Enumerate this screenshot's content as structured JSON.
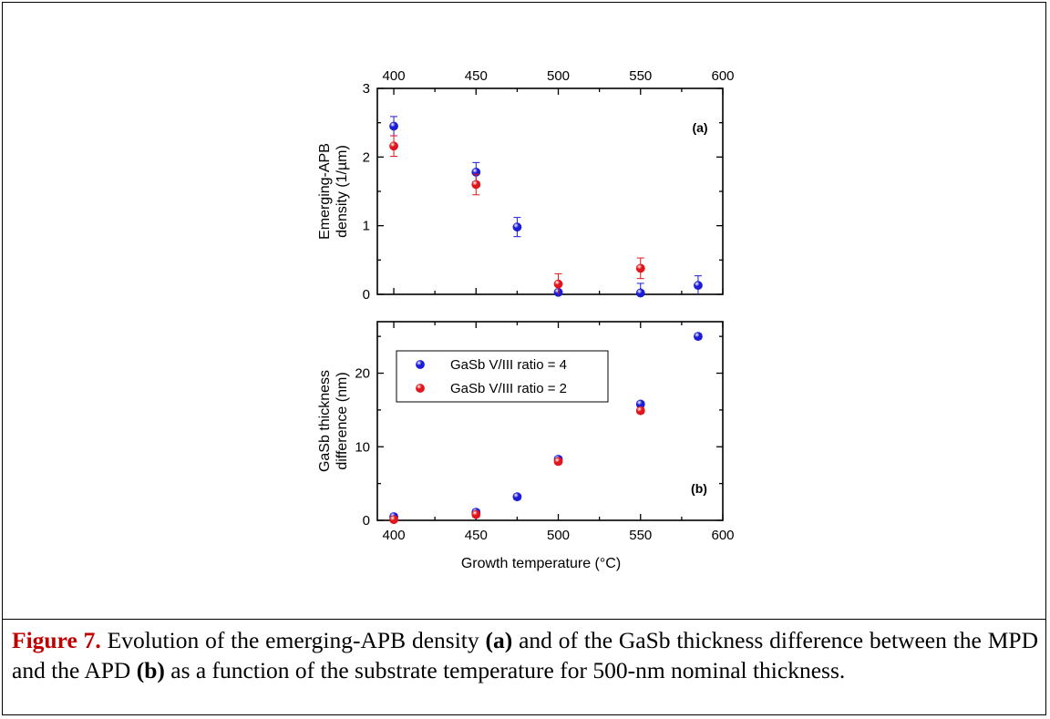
{
  "chart_data": [
    {
      "type": "scatter",
      "panel_label": "(a)",
      "ylabel_lines": [
        "Emerging-APB",
        "density (1/µm)"
      ],
      "x_top_ticks": [
        "400",
        "450",
        "500",
        "550",
        "600"
      ],
      "y_ticks": [
        "0",
        "1",
        "2",
        "3"
      ],
      "xlim": [
        390,
        600
      ],
      "ylim": [
        0,
        3
      ],
      "series": [
        {
          "name": "GaSb V/III ratio = 4",
          "color": "#1c1cd6",
          "x": [
            400,
            450,
            475,
            500,
            550,
            585
          ],
          "y": [
            2.45,
            1.78,
            0.98,
            0.03,
            0.02,
            0.13
          ],
          "err": [
            0.14,
            0.14,
            0.14,
            0.14,
            0.14,
            0.14
          ]
        },
        {
          "name": "GaSb V/III ratio = 2",
          "color": "#e0161c",
          "x": [
            400,
            450,
            500,
            550
          ],
          "y": [
            2.16,
            1.6,
            0.15,
            0.38
          ],
          "err": [
            0.15,
            0.15,
            0.15,
            0.15
          ]
        }
      ]
    },
    {
      "type": "scatter",
      "panel_label": "(b)",
      "ylabel_lines": [
        "GaSb thickness",
        "difference (nm)"
      ],
      "xlabel": "Growth temperature (°C)",
      "x_ticks": [
        "400",
        "450",
        "500",
        "550",
        "600"
      ],
      "y_ticks": [
        "0",
        "10",
        "20"
      ],
      "xlim": [
        390,
        600
      ],
      "ylim": [
        0,
        27
      ],
      "legend_position": "upper-left",
      "series": [
        {
          "name": "GaSb V/III ratio = 4",
          "color": "#1c1cd6",
          "x": [
            400,
            450,
            475,
            500,
            550,
            585
          ],
          "y": [
            0.5,
            1.1,
            3.2,
            8.3,
            15.8,
            25.0
          ],
          "err": [
            0.35,
            0.35,
            0.35,
            0.35,
            0.35,
            0.35
          ]
        },
        {
          "name": "GaSb V/III ratio = 2",
          "color": "#e0161c",
          "x": [
            400,
            450,
            500,
            550
          ],
          "y": [
            0.1,
            0.8,
            8.0,
            14.9
          ],
          "err": [
            0.35,
            0.35,
            0.35,
            0.35
          ]
        }
      ]
    }
  ],
  "caption": {
    "label": "Figure 7.",
    "part1": " Evolution of the emerging-APB density ",
    "tag_a": "(a)",
    "part2": " and of the GaSb thickness difference between the MPD and the APD ",
    "tag_b": "(b)",
    "part3": " as a function of the substrate temperature for 500-nm nominal thickness."
  }
}
